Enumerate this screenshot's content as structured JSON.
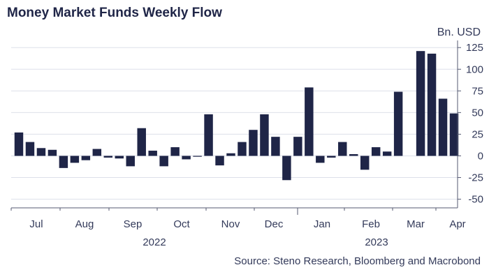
{
  "chart_data": {
    "type": "bar",
    "title": "Money Market Funds Weekly Flow",
    "unit_label": "Bn. USD",
    "source": "Source: Steno Research, Bloomberg and Macrobond",
    "ylim": [
      -60,
      130
    ],
    "yticks": [
      -50,
      -25,
      0,
      25,
      50,
      75,
      100,
      125
    ],
    "grid": true,
    "y_axis_side": "right",
    "bar_color": "#1f2547",
    "grid_color": "#dde0ea",
    "month_labels": [
      "Jul",
      "Aug",
      "Sep",
      "Oct",
      "Nov",
      "Dec",
      "Jan",
      "Feb",
      "Mar",
      "Apr"
    ],
    "year_labels": [
      "2022",
      "2023"
    ],
    "values": [
      27,
      16,
      9,
      7,
      -14,
      -8,
      -5,
      8,
      -2,
      -3,
      -12,
      32,
      6,
      -12,
      10,
      -4,
      0,
      48,
      -11,
      3,
      16,
      30,
      48,
      22,
      -28,
      22,
      79,
      -8,
      -2,
      16,
      2,
      -16,
      10,
      5,
      74,
      121,
      118,
      66,
      49
    ]
  }
}
